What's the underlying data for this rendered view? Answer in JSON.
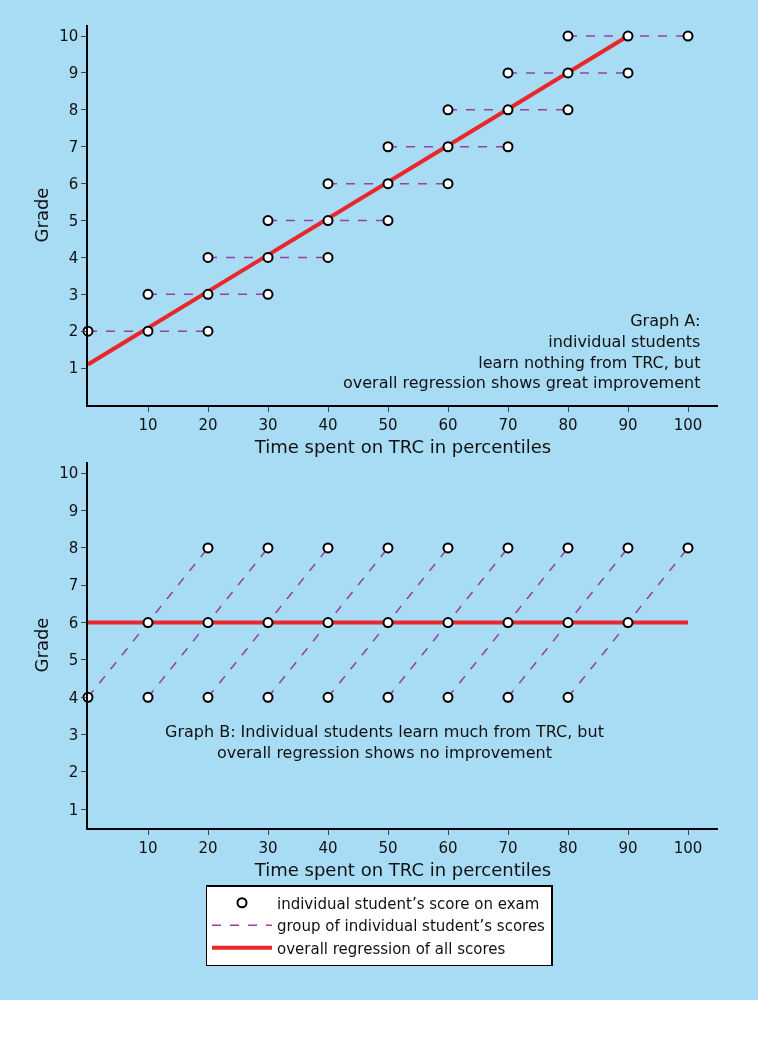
{
  "chart_data": [
    {
      "type": "line",
      "xlabel": "Time spent on TRC in percentiles",
      "ylabel": "Grade",
      "xlim": [
        0,
        105
      ],
      "ylim": [
        0,
        10.3
      ],
      "xticks": [
        10,
        20,
        30,
        40,
        50,
        60,
        70,
        80,
        90,
        100
      ],
      "yticks": [
        1,
        2,
        3,
        4,
        5,
        6,
        7,
        8,
        9,
        10
      ],
      "grid": false,
      "annotations": [
        "Graph A:\nindividual students\nlearn nothing from TRC, but\noverall regression shows great improvement"
      ],
      "series": [
        {
          "line_style": "dashed",
          "marker": "none",
          "color": "#9b3fa0",
          "x": [
            0,
            10,
            20
          ],
          "values": [
            2,
            2,
            2
          ]
        },
        {
          "line_style": "dashed",
          "marker": "none",
          "color": "#9b3fa0",
          "x": [
            10,
            20,
            30
          ],
          "values": [
            3,
            3,
            3
          ]
        },
        {
          "line_style": "dashed",
          "marker": "none",
          "color": "#9b3fa0",
          "x": [
            20,
            30,
            40
          ],
          "values": [
            4,
            4,
            4
          ]
        },
        {
          "line_style": "dashed",
          "marker": "none",
          "color": "#9b3fa0",
          "x": [
            30,
            40,
            50
          ],
          "values": [
            5,
            5,
            5
          ]
        },
        {
          "line_style": "dashed",
          "marker": "none",
          "color": "#9b3fa0",
          "x": [
            40,
            50,
            60
          ],
          "values": [
            6,
            6,
            6
          ]
        },
        {
          "line_style": "dashed",
          "marker": "none",
          "color": "#9b3fa0",
          "x": [
            50,
            60,
            70
          ],
          "values": [
            7,
            7,
            7
          ]
        },
        {
          "line_style": "dashed",
          "marker": "none",
          "color": "#9b3fa0",
          "x": [
            60,
            70,
            80
          ],
          "values": [
            8,
            8,
            8
          ]
        },
        {
          "line_style": "dashed",
          "marker": "none",
          "color": "#9b3fa0",
          "x": [
            70,
            80,
            90
          ],
          "values": [
            9,
            9,
            9
          ]
        },
        {
          "line_style": "dashed",
          "marker": "none",
          "color": "#9b3fa0",
          "x": [
            80,
            90,
            100
          ],
          "values": [
            10,
            10,
            10
          ]
        },
        {
          "line_style": "solid",
          "marker": "none",
          "color": "#e8262b",
          "x": [
            0,
            90
          ],
          "values": [
            1.1,
            10
          ]
        },
        {
          "type": "scatter",
          "marker": "circle",
          "color": "#000000",
          "x": [
            0,
            10,
            20,
            10,
            20,
            30,
            20,
            30,
            40,
            30,
            40,
            50,
            40,
            50,
            60,
            50,
            60,
            70,
            60,
            70,
            80,
            70,
            80,
            90,
            80,
            90,
            100
          ],
          "values": [
            2,
            2,
            2,
            3,
            3,
            3,
            4,
            4,
            4,
            5,
            5,
            5,
            6,
            6,
            6,
            7,
            7,
            7,
            8,
            8,
            8,
            9,
            9,
            9,
            10,
            10,
            10
          ]
        }
      ]
    },
    {
      "type": "line",
      "xlabel": "Time spent on TRC in percentiles",
      "ylabel": "Grade",
      "xlim": [
        0,
        105
      ],
      "ylim": [
        0.5,
        10.3
      ],
      "xticks": [
        10,
        20,
        30,
        40,
        50,
        60,
        70,
        80,
        90,
        100
      ],
      "yticks": [
        1,
        2,
        3,
        4,
        5,
        6,
        7,
        8,
        9,
        10
      ],
      "grid": false,
      "legend": "bottom",
      "annotations": [
        "Graph B: Individual students learn much from TRC, but\noverall regression shows no improvement"
      ],
      "series": [
        {
          "line_style": "dashed",
          "marker": "none",
          "color": "#9b3fa0",
          "name": "group of individual student’s scores",
          "x": [
            0,
            10,
            20
          ],
          "values": [
            4,
            6,
            8
          ]
        },
        {
          "line_style": "dashed",
          "marker": "none",
          "color": "#9b3fa0",
          "x": [
            10,
            20,
            30
          ],
          "values": [
            4,
            6,
            8
          ]
        },
        {
          "line_style": "dashed",
          "marker": "none",
          "color": "#9b3fa0",
          "x": [
            20,
            30,
            40
          ],
          "values": [
            4,
            6,
            8
          ]
        },
        {
          "line_style": "dashed",
          "marker": "none",
          "color": "#9b3fa0",
          "x": [
            30,
            40,
            50
          ],
          "values": [
            4,
            6,
            8
          ]
        },
        {
          "line_style": "dashed",
          "marker": "none",
          "color": "#9b3fa0",
          "x": [
            40,
            50,
            60
          ],
          "values": [
            4,
            6,
            8
          ]
        },
        {
          "line_style": "dashed",
          "marker": "none",
          "color": "#9b3fa0",
          "x": [
            50,
            60,
            70
          ],
          "values": [
            4,
            6,
            8
          ]
        },
        {
          "line_style": "dashed",
          "marker": "none",
          "color": "#9b3fa0",
          "x": [
            60,
            70,
            80
          ],
          "values": [
            4,
            6,
            8
          ]
        },
        {
          "line_style": "dashed",
          "marker": "none",
          "color": "#9b3fa0",
          "x": [
            70,
            80,
            90
          ],
          "values": [
            4,
            6,
            8
          ]
        },
        {
          "line_style": "dashed",
          "marker": "none",
          "color": "#9b3fa0",
          "x": [
            80,
            90,
            100
          ],
          "values": [
            4,
            6,
            8
          ]
        },
        {
          "line_style": "solid",
          "marker": "none",
          "color": "#e8262b",
          "name": "overall regression of all scores",
          "x": [
            0,
            100
          ],
          "values": [
            6,
            6
          ]
        },
        {
          "type": "scatter",
          "marker": "circle",
          "color": "#000000",
          "name": "individual student’s score on exam",
          "x": [
            0,
            10,
            20,
            10,
            20,
            30,
            20,
            30,
            40,
            30,
            40,
            50,
            40,
            50,
            60,
            50,
            60,
            70,
            60,
            70,
            80,
            70,
            80,
            90,
            80,
            90,
            100
          ],
          "values": [
            4,
            6,
            8,
            4,
            6,
            8,
            4,
            6,
            8,
            4,
            6,
            8,
            4,
            6,
            8,
            4,
            6,
            8,
            4,
            6,
            8,
            4,
            6,
            8,
            4,
            6,
            8
          ]
        }
      ]
    }
  ]
}
